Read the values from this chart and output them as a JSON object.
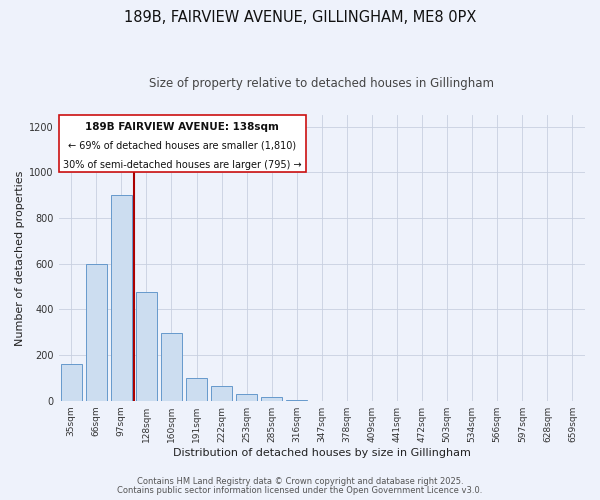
{
  "title": "189B, FAIRVIEW AVENUE, GILLINGHAM, ME8 0PX",
  "subtitle": "Size of property relative to detached houses in Gillingham",
  "xlabel": "Distribution of detached houses by size in Gillingham",
  "ylabel": "Number of detached properties",
  "bar_labels": [
    "35sqm",
    "66sqm",
    "97sqm",
    "128sqm",
    "160sqm",
    "191sqm",
    "222sqm",
    "253sqm",
    "285sqm",
    "316sqm",
    "347sqm",
    "378sqm",
    "409sqm",
    "441sqm",
    "472sqm",
    "503sqm",
    "534sqm",
    "566sqm",
    "597sqm",
    "628sqm",
    "659sqm"
  ],
  "bar_values": [
    160,
    600,
    900,
    475,
    295,
    100,
    65,
    30,
    15,
    5,
    0,
    0,
    0,
    0,
    0,
    0,
    0,
    0,
    0,
    0,
    0
  ],
  "bar_color": "#ccddf0",
  "bar_edge_color": "#6699cc",
  "background_color": "#eef2fb",
  "grid_color": "#c8d0e0",
  "red_line_x": 2.5,
  "red_line_color": "#aa0000",
  "annotation_text_line1": "189B FAIRVIEW AVENUE: 138sqm",
  "annotation_text_line2": "← 69% of detached houses are smaller (1,810)",
  "annotation_text_line3": "30% of semi-detached houses are larger (795) →",
  "annotation_box_color": "#cc1111",
  "ylim_max": 1250,
  "yticks": [
    0,
    200,
    400,
    600,
    800,
    1000,
    1200
  ],
  "footer_line1": "Contains HM Land Registry data © Crown copyright and database right 2025.",
  "footer_line2": "Contains public sector information licensed under the Open Government Licence v3.0.",
  "title_fontsize": 10.5,
  "subtitle_fontsize": 8.5,
  "axis_label_fontsize": 8,
  "tick_fontsize": 6.5,
  "annot_fontsize_bold": 7.5,
  "annot_fontsize": 7,
  "footer_fontsize": 6
}
